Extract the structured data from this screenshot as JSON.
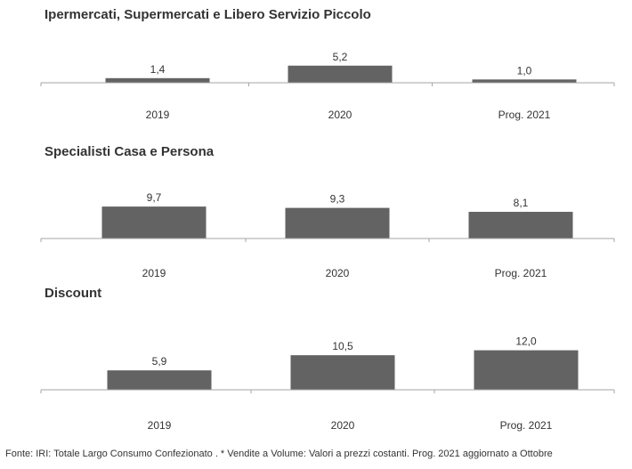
{
  "chart_data": [
    {
      "type": "bar",
      "title": "Ipermercati,  Supermercati e Libero Servizio Piccolo",
      "categories": [
        "2019",
        "2020",
        "Prog. 2021"
      ],
      "values": [
        1.4,
        5.2,
        1.0
      ],
      "value_labels": [
        "1,4",
        "5,2",
        "1,0"
      ],
      "bar_color": "#636363",
      "axis_color": "#a6a6a6",
      "grid": false,
      "legend": "none"
    },
    {
      "type": "bar",
      "title": "Specialisti  Casa e Persona",
      "categories": [
        "2019",
        "2020",
        "Prog. 2021"
      ],
      "values": [
        9.7,
        9.3,
        8.1
      ],
      "value_labels": [
        "9,7",
        "9,3",
        "8,1"
      ],
      "bar_color": "#636363",
      "axis_color": "#a6a6a6",
      "grid": false,
      "legend": "none"
    },
    {
      "type": "bar",
      "title": "Discount",
      "categories": [
        "2019",
        "2020",
        "Prog. 2021"
      ],
      "values": [
        5.9,
        10.5,
        12.0
      ],
      "value_labels": [
        "5,9",
        "10,5",
        "12,0"
      ],
      "bar_color": "#636363",
      "axis_color": "#a6a6a6",
      "grid": false,
      "legend": "none"
    }
  ],
  "footer": "Fonte: IRI: Totale Largo Consumo Confezionato . * Vendite a Volume: Valori a prezzi costanti.  Prog. 2021 aggiornato a Ottobre"
}
